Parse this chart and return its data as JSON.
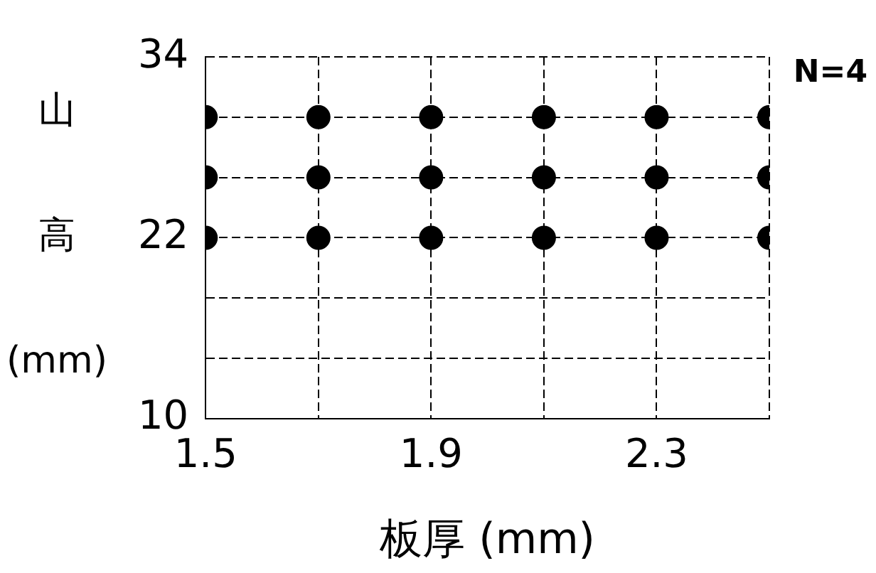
{
  "chart_data": {
    "type": "scatter",
    "xlabel": "板厚 (mm)",
    "ylabel": "山高(mm)",
    "annotations": [
      "N=4"
    ],
    "x": [
      1.5,
      1.7,
      1.9,
      2.1,
      2.3,
      2.5,
      1.5,
      1.7,
      1.9,
      2.1,
      2.3,
      2.5,
      1.5,
      1.7,
      1.9,
      2.1,
      2.3,
      2.5
    ],
    "series": [
      {
        "color": "#000000",
        "values": [
          30,
          30,
          30,
          30,
          30,
          30,
          26,
          26,
          26,
          26,
          26,
          26,
          22,
          22,
          22,
          22,
          22,
          22
        ]
      }
    ],
    "xlim": [
      1.5,
      2.5
    ],
    "xticks": [
      1.5,
      {
        "value": 1.7,
        "label": null
      },
      1.9,
      {
        "value": 2.1,
        "label": null
      },
      2.3,
      {
        "value": 2.5,
        "label": null
      }
    ],
    "ylim": [
      10,
      34
    ],
    "yticks": [
      10,
      {
        "value": 14,
        "label": null
      },
      {
        "value": 18,
        "label": null
      },
      22,
      {
        "value": 26,
        "label": null
      },
      {
        "value": 30,
        "label": null
      },
      34
    ],
    "grid": true,
    "legend": false,
    "marker": "circle"
  }
}
